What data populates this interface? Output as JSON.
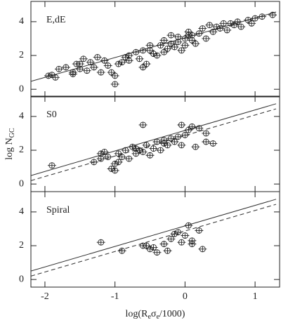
{
  "chart_data": [
    {
      "type": "scatter",
      "panel_label": "E,dE",
      "x": [
        -1.9,
        -1.85,
        -1.8,
        -1.7,
        -1.6,
        -1.6,
        -1.55,
        -1.5,
        -1.45,
        -1.4,
        -1.35,
        -1.3,
        -1.25,
        -1.2,
        -1.15,
        -1.1,
        -1.05,
        -1.0,
        -1.0,
        -0.95,
        -0.9,
        -0.85,
        -0.8,
        -0.7,
        -0.65,
        -0.6,
        -0.55,
        -0.5,
        -0.4,
        -0.35,
        -0.3,
        -0.3,
        -0.25,
        -0.2,
        -0.2,
        -0.15,
        -0.1,
        -0.1,
        -0.05,
        0.0,
        0.0,
        0.05,
        0.1,
        0.1,
        0.15,
        0.2,
        0.25,
        0.3,
        0.35,
        0.4,
        0.45,
        0.5,
        0.55,
        0.6,
        0.7,
        0.75,
        0.8,
        0.9,
        1.0,
        1.1,
        1.25,
        -0.5,
        -0.6,
        -0.45,
        0.05,
        -1.5,
        -1.95,
        -0.8,
        0.65,
        0.95
      ],
      "values": [
        0.85,
        0.7,
        1.2,
        1.3,
        1.0,
        0.9,
        1.5,
        1.2,
        1.8,
        1.1,
        1.6,
        1.3,
        1.9,
        1.0,
        1.7,
        1.4,
        1.0,
        0.8,
        0.3,
        1.5,
        1.6,
        1.9,
        2.0,
        2.2,
        1.8,
        2.3,
        1.5,
        2.3,
        2.0,
        2.6,
        2.9,
        2.2,
        2.4,
        3.2,
        2.7,
        2.5,
        3.1,
        2.8,
        2.3,
        3.0,
        2.6,
        3.4,
        2.9,
        3.2,
        2.7,
        3.3,
        3.6,
        3.0,
        3.8,
        3.4,
        3.7,
        3.6,
        3.9,
        3.5,
        3.8,
        4.0,
        3.7,
        4.1,
        4.2,
        4.3,
        4.4,
        2.6,
        1.3,
        2.1,
        3.2,
        1.5,
        0.8,
        1.7,
        3.9,
        3.9
      ],
      "lines": [
        {
          "style": "solid",
          "x": [
            -2.2,
            1.3
          ],
          "values": [
            0.47,
            4.57
          ]
        }
      ],
      "xlim": [
        -2.2,
        1.35
      ],
      "ylim": [
        -0.45,
        5.2
      ],
      "xticks": [
        -2,
        -1,
        0,
        1
      ],
      "yticks": [
        0,
        2,
        4
      ]
    },
    {
      "type": "scatter",
      "panel_label": "S0",
      "x": [
        -1.9,
        -1.3,
        -1.2,
        -1.15,
        -1.1,
        -1.05,
        -1.0,
        -1.0,
        -0.95,
        -0.9,
        -0.85,
        -0.8,
        -0.75,
        -0.7,
        -0.7,
        -0.65,
        -0.6,
        -0.55,
        -0.5,
        -0.45,
        -0.4,
        -0.35,
        -0.3,
        -0.25,
        -0.2,
        -0.15,
        -0.1,
        -0.05,
        0.0,
        -0.6,
        -0.05,
        0.05,
        0.1,
        0.2,
        0.3,
        0.3,
        0.15,
        0.4,
        -1.2,
        -0.95,
        -0.3
      ],
      "values": [
        1.1,
        1.3,
        1.5,
        1.9,
        1.6,
        0.9,
        0.8,
        1.2,
        1.8,
        1.6,
        2.0,
        1.5,
        2.2,
        1.8,
        2.1,
        2.0,
        1.9,
        2.3,
        1.7,
        2.1,
        2.5,
        2.0,
        2.6,
        2.3,
        2.7,
        2.5,
        2.8,
        2.3,
        2.9,
        3.5,
        3.5,
        3.2,
        3.4,
        3.3,
        2.5,
        3.0,
        2.2,
        2.4,
        1.8,
        1.3,
        2.4
      ],
      "lines": [
        {
          "style": "solid",
          "x": [
            -2.2,
            1.3
          ],
          "values": [
            0.5,
            4.75
          ]
        },
        {
          "style": "dashed",
          "x": [
            -2.2,
            1.3
          ],
          "values": [
            0.2,
            4.45
          ]
        }
      ],
      "xlim": [
        -2.2,
        1.35
      ],
      "ylim": [
        -0.45,
        5.2
      ],
      "xticks": [
        -2,
        -1,
        0,
        1
      ],
      "yticks": [
        0,
        2,
        4
      ],
      "ylabel": "log N",
      "ylabel_sub": "GC"
    },
    {
      "type": "scatter",
      "panel_label": "Spiral",
      "x": [
        -1.2,
        -0.9,
        -0.6,
        -0.55,
        -0.5,
        -0.45,
        -0.4,
        -0.3,
        -0.25,
        -0.2,
        -0.15,
        -0.1,
        -0.05,
        0.0,
        0.05,
        0.1,
        0.1,
        0.2,
        0.25
      ],
      "values": [
        2.2,
        1.7,
        2.0,
        2.0,
        1.8,
        1.9,
        1.6,
        2.1,
        1.7,
        2.4,
        2.7,
        2.8,
        2.2,
        2.6,
        3.2,
        2.3,
        2.1,
        2.9,
        1.8
      ],
      "lines": [
        {
          "style": "solid",
          "x": [
            -2.2,
            1.3
          ],
          "values": [
            0.5,
            4.75
          ]
        },
        {
          "style": "dashed",
          "x": [
            -2.2,
            1.3
          ],
          "values": [
            0.2,
            4.45
          ]
        }
      ],
      "xlim": [
        -2.2,
        1.35
      ],
      "ylim": [
        -0.45,
        5.2
      ],
      "xticks": [
        -2,
        -1,
        0,
        1
      ],
      "yticks": [
        0,
        2,
        4
      ],
      "xlabel": [
        {
          "text": "log(R"
        },
        {
          "text": "e",
          "sub": true
        },
        {
          "text": "σ"
        },
        {
          "text": "e",
          "sub": true
        },
        {
          "text": "/1000)"
        }
      ]
    }
  ]
}
